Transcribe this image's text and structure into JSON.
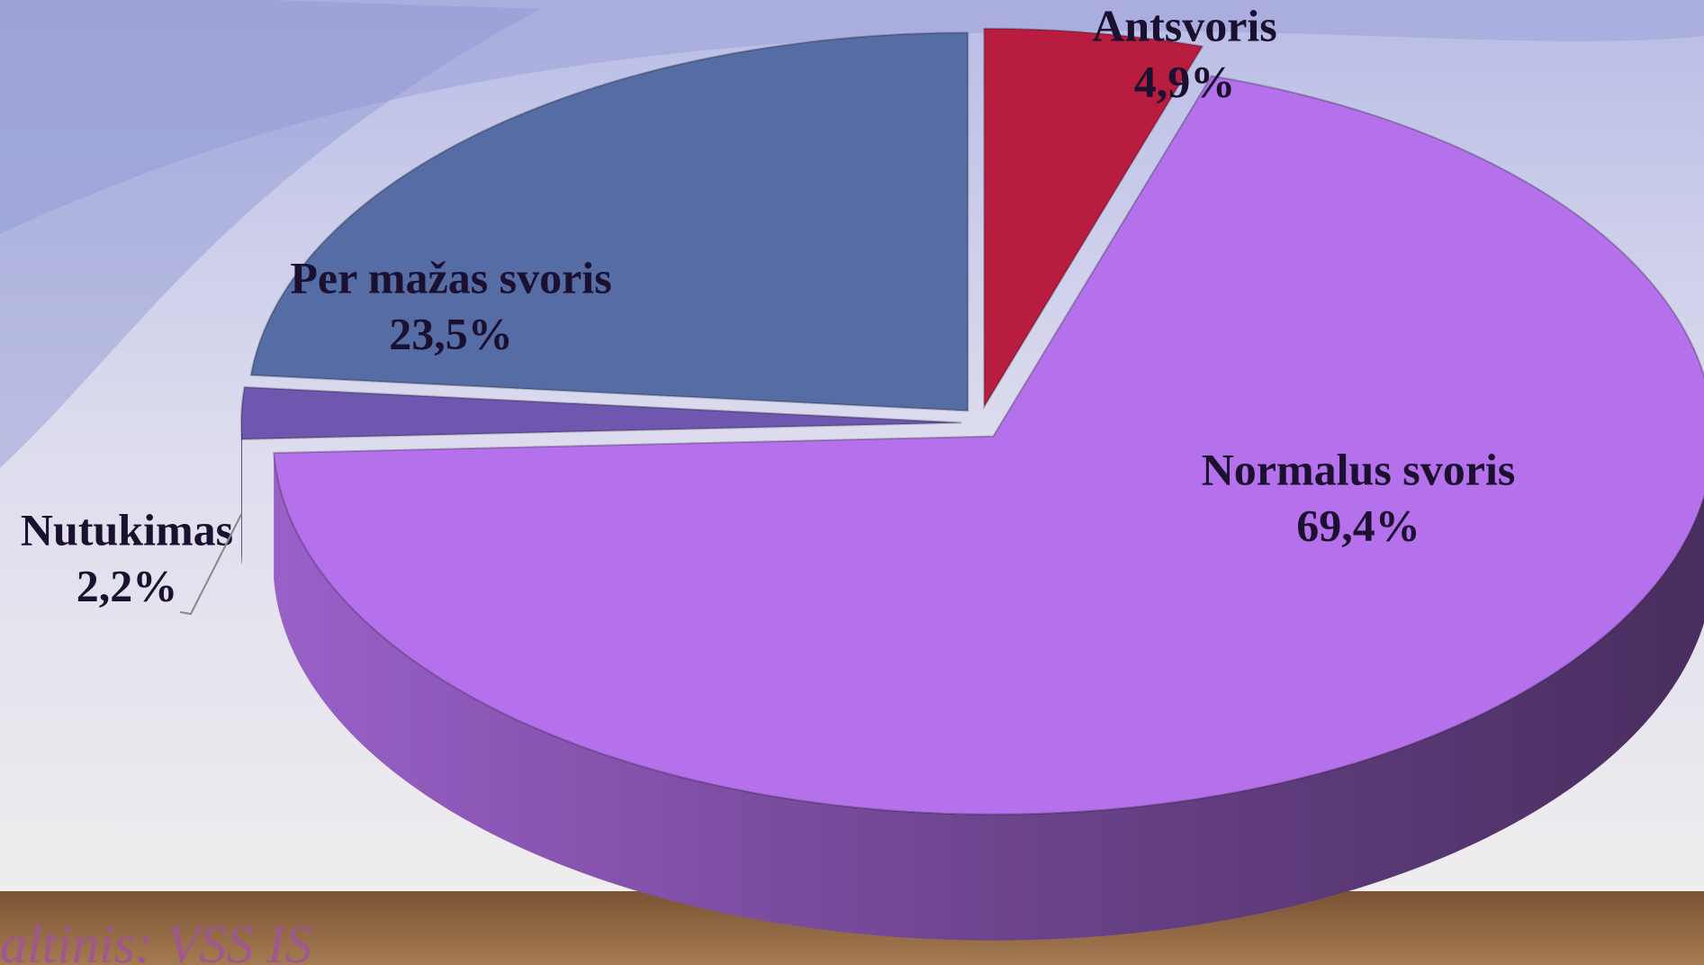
{
  "chart_data": {
    "type": "pie",
    "categories": [
      "Antsvoris",
      "Normalus svoris",
      "Nutukimas",
      "Per mažas svoris"
    ],
    "values": [
      4.9,
      69.4,
      2.2,
      23.5
    ],
    "value_labels": [
      "4,9%",
      "69,4%",
      "2,2%",
      "23,5%"
    ],
    "colors": [
      "#b81c3f",
      "#b571ec",
      "#6f57b0",
      "#566ca4"
    ],
    "source": "altinis: VSS IS"
  }
}
